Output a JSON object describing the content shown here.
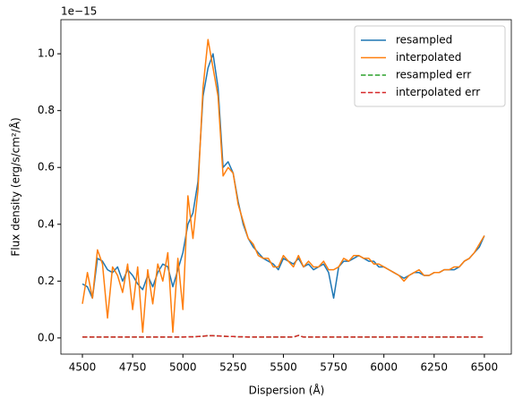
{
  "chart_data": {
    "type": "line",
    "x_label": "Dispersion (Å)",
    "y_label": "Flux density (erg/s/cm²/Å)",
    "y_offset_text": "1e−15",
    "x": [
      4500,
      4525,
      4550,
      4575,
      4600,
      4625,
      4650,
      4675,
      4700,
      4725,
      4750,
      4775,
      4800,
      4825,
      4850,
      4875,
      4900,
      4925,
      4950,
      4975,
      5000,
      5025,
      5050,
      5075,
      5100,
      5125,
      5150,
      5175,
      5200,
      5225,
      5250,
      5275,
      5300,
      5325,
      5350,
      5375,
      5400,
      5425,
      5450,
      5475,
      5500,
      5525,
      5550,
      5575,
      5600,
      5625,
      5650,
      5675,
      5700,
      5725,
      5750,
      5775,
      5800,
      5825,
      5850,
      5875,
      5900,
      5925,
      5950,
      5975,
      6000,
      6025,
      6050,
      6075,
      6100,
      6125,
      6150,
      6175,
      6200,
      6225,
      6250,
      6275,
      6300,
      6325,
      6350,
      6375,
      6400,
      6425,
      6450,
      6475,
      6500
    ],
    "series": [
      {
        "name": "resampled",
        "color": "#1f77b4",
        "linestyle": "solid",
        "values": [
          0.19,
          0.18,
          0.14,
          0.28,
          0.27,
          0.24,
          0.23,
          0.25,
          0.2,
          0.24,
          0.22,
          0.19,
          0.17,
          0.22,
          0.18,
          0.23,
          0.26,
          0.25,
          0.18,
          0.24,
          0.3,
          0.4,
          0.44,
          0.55,
          0.85,
          0.95,
          1.0,
          0.88,
          0.6,
          0.62,
          0.58,
          0.48,
          0.4,
          0.35,
          0.32,
          0.3,
          0.28,
          0.27,
          0.26,
          0.24,
          0.28,
          0.27,
          0.26,
          0.28,
          0.25,
          0.26,
          0.24,
          0.25,
          0.26,
          0.23,
          0.14,
          0.25,
          0.27,
          0.27,
          0.28,
          0.29,
          0.28,
          0.27,
          0.27,
          0.25,
          0.25,
          0.24,
          0.23,
          0.22,
          0.21,
          0.22,
          0.23,
          0.23,
          0.22,
          0.22,
          0.23,
          0.23,
          0.24,
          0.24,
          0.24,
          0.25,
          0.27,
          0.28,
          0.3,
          0.32,
          0.36
        ]
      },
      {
        "name": "interpolated",
        "color": "#ff7f0e",
        "linestyle": "solid",
        "values": [
          0.12,
          0.23,
          0.14,
          0.31,
          0.26,
          0.07,
          0.25,
          0.22,
          0.16,
          0.26,
          0.1,
          0.25,
          0.02,
          0.24,
          0.12,
          0.26,
          0.2,
          0.3,
          0.02,
          0.28,
          0.1,
          0.5,
          0.35,
          0.52,
          0.88,
          1.05,
          0.95,
          0.85,
          0.57,
          0.6,
          0.58,
          0.47,
          0.41,
          0.35,
          0.33,
          0.29,
          0.28,
          0.28,
          0.25,
          0.25,
          0.29,
          0.27,
          0.25,
          0.29,
          0.25,
          0.27,
          0.25,
          0.25,
          0.27,
          0.24,
          0.24,
          0.25,
          0.28,
          0.27,
          0.29,
          0.29,
          0.28,
          0.28,
          0.26,
          0.26,
          0.25,
          0.24,
          0.23,
          0.22,
          0.2,
          0.22,
          0.23,
          0.24,
          0.22,
          0.22,
          0.23,
          0.23,
          0.24,
          0.24,
          0.25,
          0.25,
          0.27,
          0.28,
          0.3,
          0.33,
          0.36
        ]
      },
      {
        "name": "resampled err",
        "color": "#2ca02c",
        "linestyle": "dashed",
        "values": [
          0.003,
          0.003,
          0.003,
          0.003,
          0.003,
          0.003,
          0.003,
          0.003,
          0.003,
          0.003,
          0.003,
          0.003,
          0.003,
          0.003,
          0.003,
          0.003,
          0.003,
          0.003,
          0.003,
          0.003,
          0.003,
          0.004,
          0.004,
          0.005,
          0.006,
          0.008,
          0.008,
          0.007,
          0.006,
          0.005,
          0.005,
          0.004,
          0.004,
          0.003,
          0.003,
          0.003,
          0.003,
          0.003,
          0.003,
          0.003,
          0.003,
          0.003,
          0.003,
          0.009,
          0.003,
          0.003,
          0.003,
          0.003,
          0.003,
          0.003,
          0.003,
          0.003,
          0.003,
          0.003,
          0.003,
          0.003,
          0.003,
          0.003,
          0.003,
          0.003,
          0.003,
          0.003,
          0.003,
          0.003,
          0.003,
          0.003,
          0.003,
          0.003,
          0.003,
          0.003,
          0.003,
          0.003,
          0.003,
          0.003,
          0.003,
          0.003,
          0.003,
          0.003,
          0.003,
          0.003,
          0.003
        ]
      },
      {
        "name": "interpolated err",
        "color": "#d62728",
        "linestyle": "dashed",
        "values": [
          0.003,
          0.003,
          0.003,
          0.003,
          0.003,
          0.003,
          0.003,
          0.003,
          0.003,
          0.003,
          0.003,
          0.003,
          0.003,
          0.003,
          0.003,
          0.003,
          0.003,
          0.003,
          0.003,
          0.003,
          0.003,
          0.004,
          0.004,
          0.005,
          0.006,
          0.008,
          0.008,
          0.007,
          0.006,
          0.005,
          0.005,
          0.004,
          0.004,
          0.003,
          0.003,
          0.003,
          0.003,
          0.003,
          0.003,
          0.003,
          0.003,
          0.003,
          0.003,
          0.009,
          0.003,
          0.003,
          0.003,
          0.003,
          0.003,
          0.003,
          0.003,
          0.003,
          0.003,
          0.003,
          0.003,
          0.003,
          0.003,
          0.003,
          0.003,
          0.003,
          0.003,
          0.003,
          0.003,
          0.003,
          0.003,
          0.003,
          0.003,
          0.003,
          0.003,
          0.003,
          0.003,
          0.003,
          0.003,
          0.003,
          0.003,
          0.003,
          0.003,
          0.003,
          0.003,
          0.003,
          0.003
        ]
      }
    ],
    "xlim": [
      4393,
      6634
    ],
    "ylim": [
      -0.057,
      1.12
    ],
    "xticks": [
      4500,
      4750,
      5000,
      5250,
      5500,
      5750,
      6000,
      6250,
      6500
    ],
    "yticks": [
      {
        "value": 0,
        "label": "0.0"
      },
      0.2,
      0.4,
      0.6,
      0.8,
      {
        "value": 1,
        "label": "1.0"
      }
    ],
    "legend": "upper right"
  }
}
